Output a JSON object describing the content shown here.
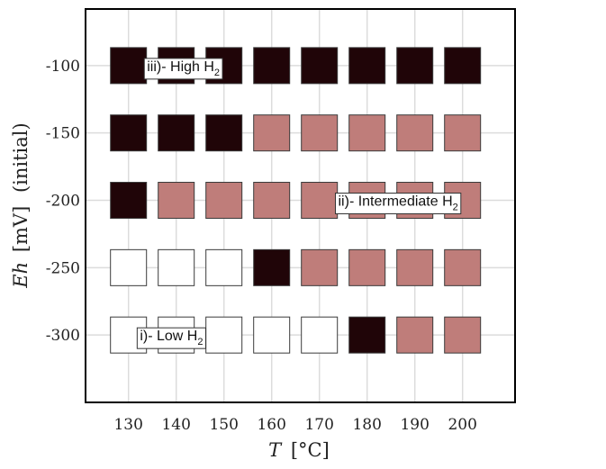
{
  "chart_data": {
    "type": "heatmap",
    "title": "",
    "xlabel": {
      "var": "T",
      "unit": "[°C]"
    },
    "ylabel": {
      "var": "Eh",
      "unit": "[mV]",
      "suffix": "(initial)"
    },
    "x": [
      130,
      140,
      150,
      160,
      170,
      180,
      190,
      200
    ],
    "y": [
      -100,
      -150,
      -200,
      -250,
      -300
    ],
    "xlim": [
      121,
      211
    ],
    "ylim": [
      -350,
      -58
    ],
    "grid": true,
    "categories": [
      "i)- Low H₂",
      "ii)- Intermediate H₂",
      "iii)- High H₂"
    ],
    "category_colors": {
      "low": "#ffffff",
      "intermediate": "#bf7d7a",
      "high": "#200508"
    },
    "matrix": [
      [
        "high",
        "high",
        "high",
        "high",
        "high",
        "high",
        "high",
        "high"
      ],
      [
        "high",
        "high",
        "high",
        "intermediate",
        "intermediate",
        "intermediate",
        "intermediate",
        "intermediate"
      ],
      [
        "high",
        "intermediate",
        "intermediate",
        "intermediate",
        "intermediate",
        "intermediate",
        "intermediate",
        "intermediate"
      ],
      [
        "low",
        "low",
        "low",
        "high",
        "intermediate",
        "intermediate",
        "intermediate",
        "intermediate"
      ],
      [
        "low",
        "low",
        "low",
        "low",
        "low",
        "high",
        "intermediate",
        "intermediate"
      ]
    ],
    "annotations": [
      {
        "id": "high",
        "text": "iii)- High H",
        "sub": "2",
        "x": 141.5,
        "y": -100
      },
      {
        "id": "intermediate",
        "text": "ii)- Intermediate H",
        "sub": "2",
        "x": 186.5,
        "y": -200
      },
      {
        "id": "low",
        "text": "i)- Low H",
        "sub": "2",
        "x": 139,
        "y": -300
      }
    ]
  }
}
